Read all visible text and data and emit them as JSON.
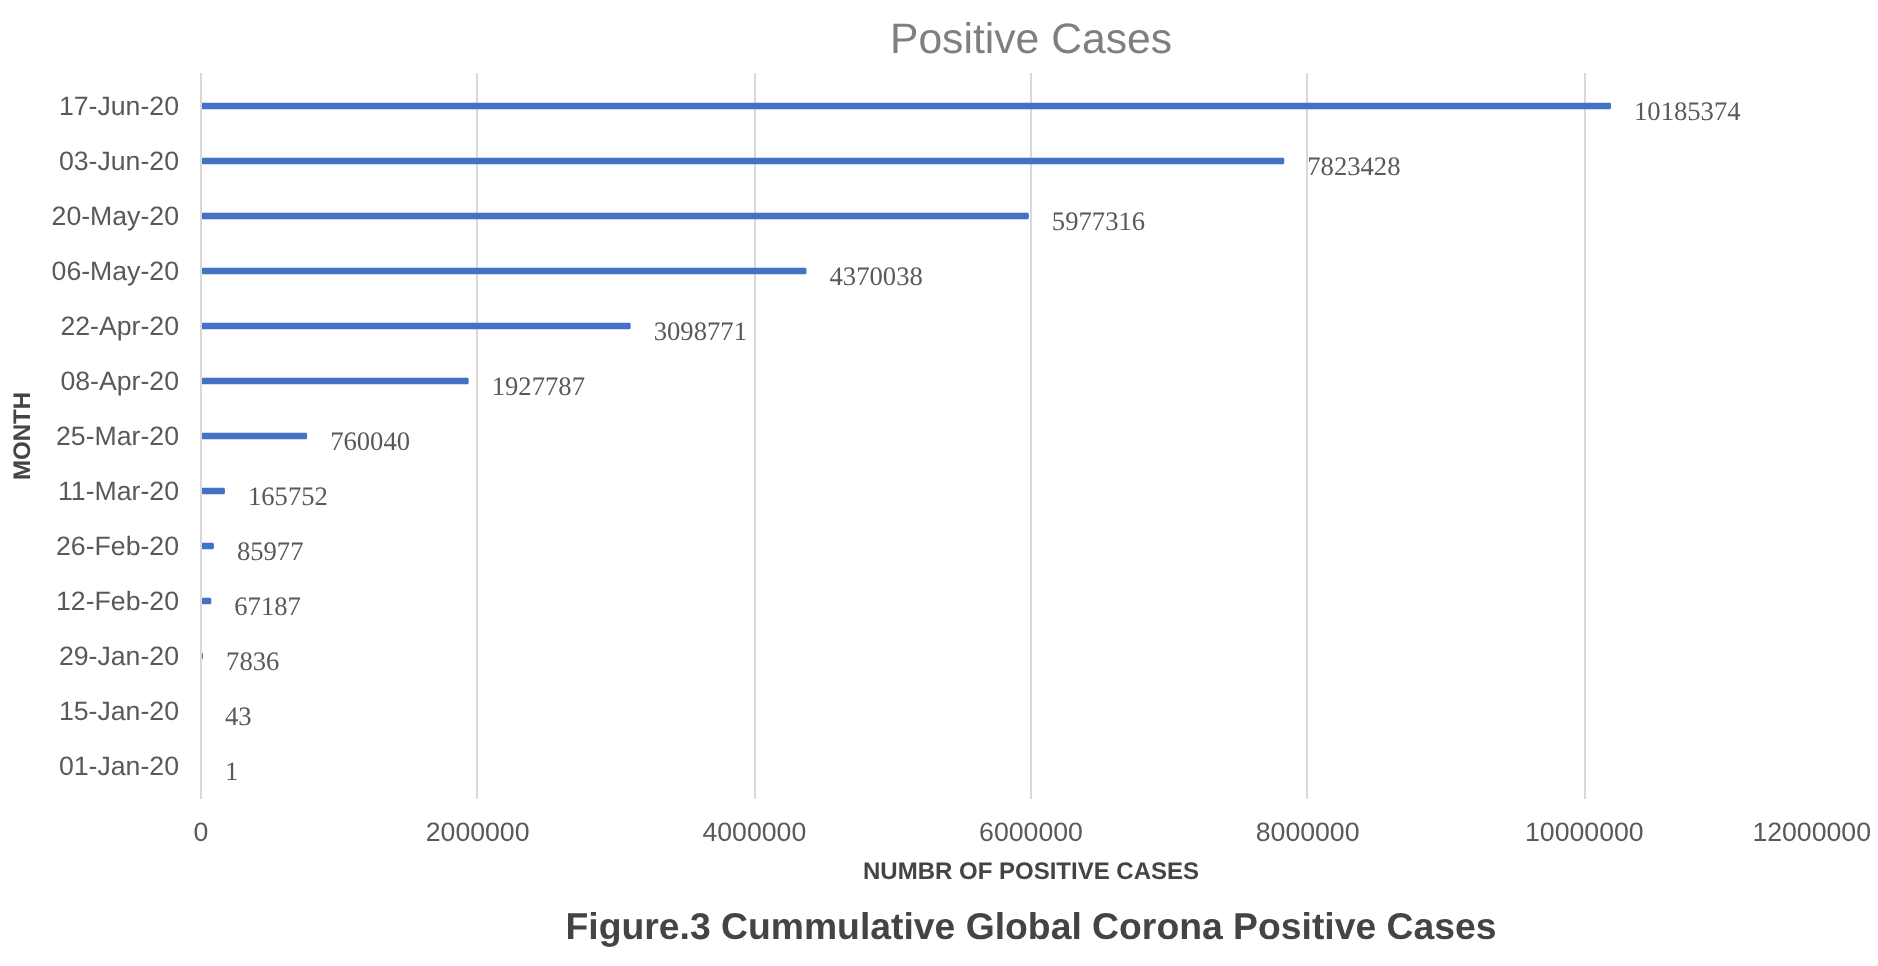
{
  "chart_data": {
    "type": "bar",
    "orientation": "horizontal",
    "title": "Positive Cases",
    "xlabel": "NUMBR OF POSITIVE CASES",
    "ylabel": "MONTH",
    "categories": [
      "17-Jun-20",
      "03-Jun-20",
      "20-May-20",
      "06-May-20",
      "22-Apr-20",
      "08-Apr-20",
      "25-Mar-20",
      "11-Mar-20",
      "26-Feb-20",
      "12-Feb-20",
      "29-Jan-20",
      "15-Jan-20",
      "01-Jan-20"
    ],
    "values": [
      10185374,
      7823428,
      5977316,
      4370038,
      3098771,
      1927787,
      760040,
      165752,
      85977,
      67187,
      7836,
      43,
      1
    ],
    "color": "#4472c4",
    "data_labels": true,
    "xlim": [
      0,
      12000000
    ],
    "xticks": [
      0,
      2000000,
      4000000,
      6000000,
      8000000,
      10000000,
      12000000
    ],
    "grid": "x",
    "annotations": [
      "Figure.3 Cummulative Global Corona Positive Cases"
    ]
  }
}
